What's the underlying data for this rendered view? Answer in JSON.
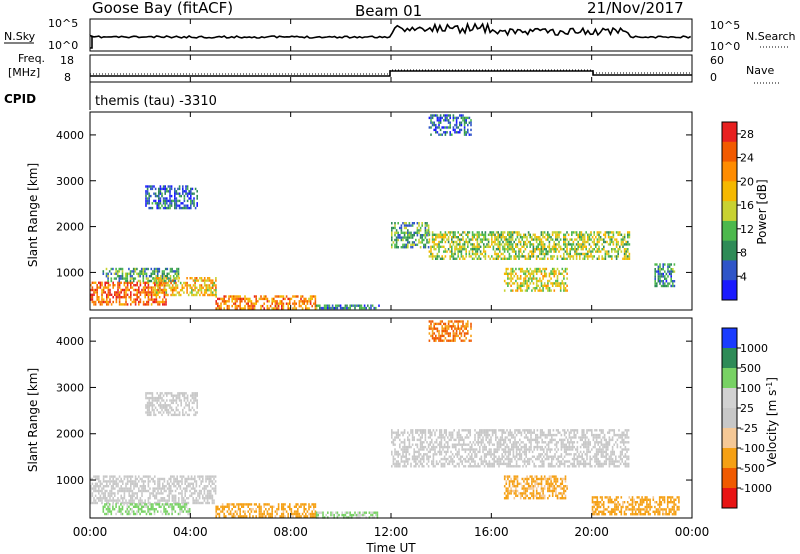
{
  "header": {
    "station": "Goose Bay (fitACF)",
    "beam": "Beam 01",
    "date": "21/Nov/2017"
  },
  "noise_panel": {
    "left_label": "N.Sky",
    "left_ticks": [
      "10^5",
      "10^0"
    ],
    "right_ticks": [
      "10^5",
      "10^0"
    ],
    "right_label": "N.Search"
  },
  "freq_panel": {
    "left_label_1": "Freq.",
    "left_label_2": "[MHz]",
    "left_ticks": [
      "18",
      "8"
    ],
    "right_ticks": [
      "60",
      "0"
    ],
    "right_label": "Nave"
  },
  "cpid_panel": {
    "label": "CPID",
    "value": "themis (tau) -3310"
  },
  "colors": {
    "power_scale": [
      "#1a1aff",
      "#2f55c8",
      "#2e8b57",
      "#4cb84c",
      "#c8d232",
      "#f5b800",
      "#ff8c00",
      "#f25a00",
      "#e82020"
    ],
    "velocity_scale": [
      "#e81414",
      "#f05a00",
      "#f5a014",
      "#f5c896",
      "#c8c8c8",
      "#d2d2d2",
      "#78d264",
      "#2e8b57",
      "#1a3cff"
    ]
  },
  "chart_data": [
    {
      "type": "heatmap",
      "title": "Power",
      "xlabel": "Time UT",
      "ylabel": "Slant Range [km]",
      "x_range_hours": [
        0,
        24
      ],
      "ylim": [
        180,
        4500
      ],
      "x_tick_labels": [
        "00:00",
        "04:00",
        "08:00",
        "12:00",
        "16:00",
        "20:00",
        "00:00"
      ],
      "y_tick_labels": [
        "1000",
        "2000",
        "3000",
        "4000"
      ],
      "colorbar": {
        "label": "Power [dB]",
        "ticks": [
          "4",
          "8",
          "12",
          "16",
          "20",
          "24",
          "28"
        ],
        "range": [
          0,
          30
        ]
      },
      "regions": [
        {
          "t0": 0.0,
          "t1": 3.0,
          "r0": 300,
          "r1": 800,
          "value": 24
        },
        {
          "t0": 0.5,
          "t1": 3.5,
          "r0": 800,
          "r1": 1100,
          "value": 10
        },
        {
          "t0": 2.5,
          "t1": 5.0,
          "r0": 500,
          "r1": 900,
          "value": 18
        },
        {
          "t0": 5.0,
          "t1": 9.0,
          "r0": 220,
          "r1": 500,
          "value": 22
        },
        {
          "t0": 9.0,
          "t1": 11.5,
          "r0": 200,
          "r1": 300,
          "value": 8
        },
        {
          "t0": 2.2,
          "t1": 4.3,
          "r0": 2400,
          "r1": 2900,
          "value": 6
        },
        {
          "t0": 12.0,
          "t1": 13.5,
          "r0": 1550,
          "r1": 2100,
          "value": 10
        },
        {
          "t0": 13.5,
          "t1": 21.5,
          "r0": 1300,
          "r1": 1900,
          "value": 14
        },
        {
          "t0": 16.5,
          "t1": 19.0,
          "r0": 600,
          "r1": 1100,
          "value": 16
        },
        {
          "t0": 22.5,
          "t1": 23.3,
          "r0": 700,
          "r1": 1200,
          "value": 8
        },
        {
          "t0": 13.5,
          "t1": 15.2,
          "r0": 4000,
          "r1": 4450,
          "value": 6
        }
      ]
    },
    {
      "type": "heatmap",
      "title": "Velocity",
      "xlabel": "Time UT",
      "ylabel": "Slant Range [km]",
      "x_range_hours": [
        0,
        24
      ],
      "ylim": [
        180,
        4500
      ],
      "x_tick_labels": [
        "00:00",
        "04:00",
        "08:00",
        "12:00",
        "16:00",
        "20:00",
        "00:00"
      ],
      "y_tick_labels": [
        "1000",
        "2000",
        "3000",
        "4000"
      ],
      "colorbar": {
        "label": "Velocity [m s^-1]",
        "ticks": [
          "1000",
          "500",
          "100",
          "25",
          "-25",
          "-100",
          "-500",
          "-1000"
        ]
      },
      "regions": [
        {
          "t0": 0.0,
          "t1": 5.0,
          "r0": 500,
          "r1": 1100,
          "value": 0
        },
        {
          "t0": 0.5,
          "t1": 4.0,
          "r0": 250,
          "r1": 500,
          "value": 150
        },
        {
          "t0": 5.0,
          "t1": 9.0,
          "r0": 220,
          "r1": 500,
          "value": -200
        },
        {
          "t0": 9.0,
          "t1": 11.5,
          "r0": 200,
          "r1": 320,
          "value": 120
        },
        {
          "t0": 2.2,
          "t1": 4.3,
          "r0": 2400,
          "r1": 2900,
          "value": 0
        },
        {
          "t0": 12.0,
          "t1": 21.5,
          "r0": 1300,
          "r1": 2100,
          "value": 0
        },
        {
          "t0": 16.5,
          "t1": 19.0,
          "r0": 600,
          "r1": 1100,
          "value": -150
        },
        {
          "t0": 20.0,
          "t1": 23.5,
          "r0": 250,
          "r1": 650,
          "value": -200
        },
        {
          "t0": 13.5,
          "t1": 15.2,
          "r0": 4000,
          "r1": 4450,
          "value": -600
        }
      ]
    }
  ]
}
